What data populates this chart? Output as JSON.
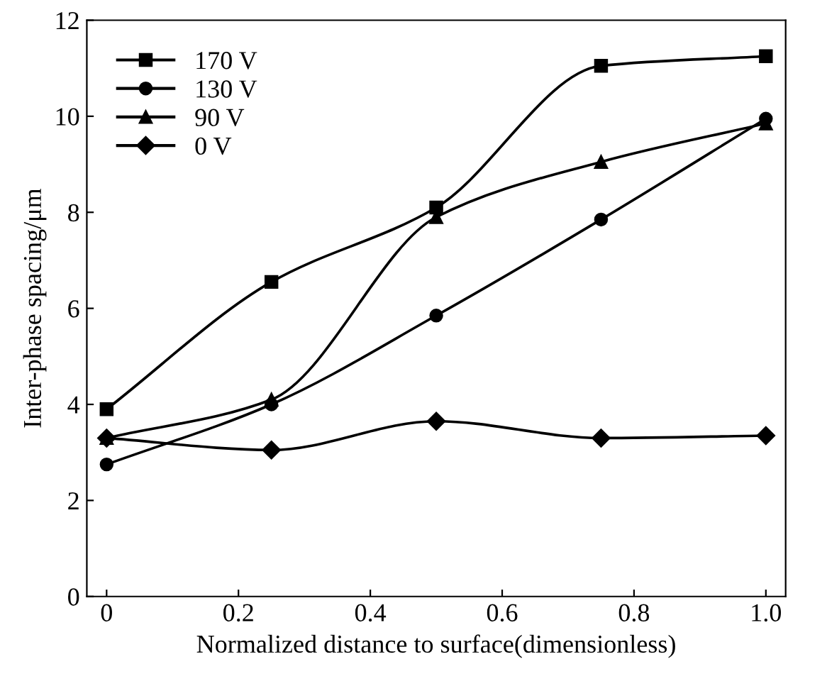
{
  "chart_data": {
    "type": "line",
    "xlabel": "Normalized distance to surface(dimensionless)",
    "ylabel": "Inter-phase spacing/μm",
    "x": [
      0,
      0.25,
      0.5,
      0.75,
      1.0
    ],
    "series": [
      {
        "name": "170 V",
        "color": "#000000",
        "marker": "square",
        "values": [
          3.9,
          6.55,
          8.1,
          11.05,
          11.25
        ]
      },
      {
        "name": "130 V",
        "color": "#000000",
        "marker": "circle",
        "values": [
          2.75,
          4.0,
          5.85,
          7.85,
          9.95
        ]
      },
      {
        "name": "90 V",
        "color": "#000000",
        "marker": "triangle",
        "values": [
          3.3,
          4.1,
          7.9,
          9.05,
          9.85
        ]
      },
      {
        "name": "0 V",
        "color": "#000000",
        "marker": "diamond",
        "values": [
          3.3,
          3.05,
          3.65,
          3.3,
          3.35
        ]
      }
    ],
    "xlim": [
      -0.03,
      1.03
    ],
    "ylim": [
      0,
      12
    ],
    "xticks": [
      0,
      0.2,
      0.4,
      0.6,
      0.8,
      {
        "value": 1.0,
        "label": "1.0"
      }
    ],
    "yticks": [
      0,
      2,
      4,
      6,
      8,
      10,
      12
    ],
    "grid": false,
    "legend": "top left",
    "line_style": "solid"
  }
}
